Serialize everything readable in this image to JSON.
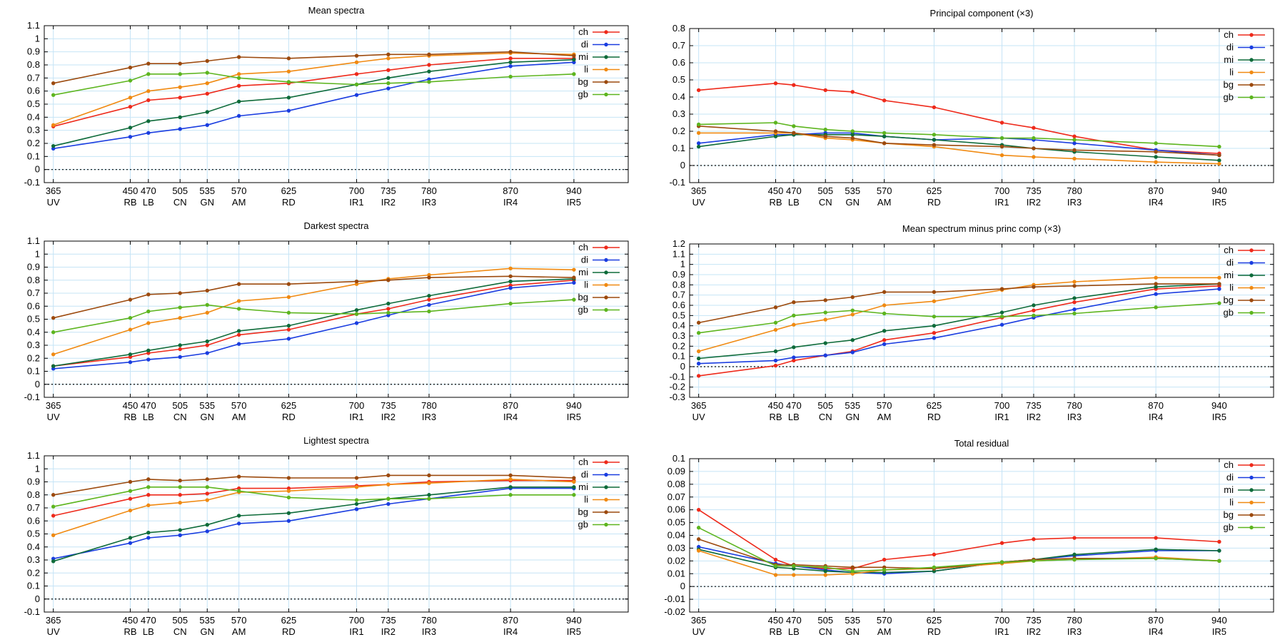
{
  "colors": {
    "ch": "#ee2a1b",
    "di": "#1a3de0",
    "mi": "#0e6b3a",
    "li": "#f08a12",
    "bg": "#9c4a0e",
    "gb": "#5db51f",
    "grid": "#c6e4f6",
    "zero_line": "#000000"
  },
  "x_ticks": [
    {
      "x": 365,
      "num": "365",
      "band": "UV"
    },
    {
      "x": 450,
      "num": "450",
      "band": "RB"
    },
    {
      "x": 470,
      "num": "470",
      "band": "LB"
    },
    {
      "x": 505,
      "num": "505",
      "band": "CN"
    },
    {
      "x": 535,
      "num": "535",
      "band": "GN"
    },
    {
      "x": 570,
      "num": "570",
      "band": "AM"
    },
    {
      "x": 625,
      "num": "625",
      "band": "RD"
    },
    {
      "x": 700,
      "num": "700",
      "band": "IR1"
    },
    {
      "x": 735,
      "num": "735",
      "band": "IR2"
    },
    {
      "x": 780,
      "num": "780",
      "band": "IR3"
    },
    {
      "x": 870,
      "num": "870",
      "band": "IR4"
    },
    {
      "x": 940,
      "num": "940",
      "band": "IR5"
    }
  ],
  "chart_data": [
    {
      "type": "line",
      "title": "Mean spectra",
      "xlim": [
        355,
        1000
      ],
      "ylim": [
        -0.1,
        1.1
      ],
      "ystep": 0.1,
      "legend_position": "top-right",
      "grid": true,
      "x": [
        365,
        450,
        470,
        505,
        535,
        570,
        625,
        700,
        735,
        780,
        870,
        940
      ],
      "series": [
        {
          "name": "ch",
          "values": [
            0.33,
            0.48,
            0.53,
            0.55,
            0.58,
            0.64,
            0.66,
            0.73,
            0.76,
            0.8,
            0.85,
            0.85
          ]
        },
        {
          "name": "di",
          "values": [
            0.16,
            0.25,
            0.28,
            0.31,
            0.34,
            0.41,
            0.45,
            0.57,
            0.62,
            0.69,
            0.79,
            0.82
          ]
        },
        {
          "name": "mi",
          "values": [
            0.18,
            0.32,
            0.37,
            0.4,
            0.44,
            0.52,
            0.55,
            0.65,
            0.7,
            0.75,
            0.82,
            0.84
          ]
        },
        {
          "name": "li",
          "values": [
            0.34,
            0.55,
            0.6,
            0.63,
            0.66,
            0.73,
            0.75,
            0.82,
            0.85,
            0.87,
            0.89,
            0.88
          ]
        },
        {
          "name": "bg",
          "values": [
            0.66,
            0.78,
            0.81,
            0.81,
            0.83,
            0.86,
            0.85,
            0.87,
            0.88,
            0.88,
            0.9,
            0.87
          ]
        },
        {
          "name": "gb",
          "values": [
            0.57,
            0.68,
            0.73,
            0.73,
            0.74,
            0.7,
            0.67,
            0.65,
            0.66,
            0.67,
            0.71,
            0.73
          ]
        }
      ]
    },
    {
      "type": "line",
      "title": "Principal component (×3)",
      "xlim": [
        355,
        1000
      ],
      "ylim": [
        -0.1,
        0.8
      ],
      "ystep": 0.1,
      "legend_position": "top-right",
      "grid": true,
      "x": [
        365,
        450,
        470,
        505,
        535,
        570,
        625,
        700,
        735,
        780,
        870,
        940
      ],
      "series": [
        {
          "name": "ch",
          "values": [
            0.44,
            0.48,
            0.47,
            0.44,
            0.43,
            0.38,
            0.34,
            0.25,
            0.22,
            0.17,
            0.09,
            0.07
          ]
        },
        {
          "name": "di",
          "values": [
            0.13,
            0.18,
            0.18,
            0.19,
            0.19,
            0.17,
            0.15,
            0.16,
            0.15,
            0.13,
            0.09,
            0.06
          ]
        },
        {
          "name": "mi",
          "values": [
            0.11,
            0.17,
            0.18,
            0.18,
            0.18,
            0.17,
            0.15,
            0.12,
            0.1,
            0.08,
            0.05,
            0.03
          ]
        },
        {
          "name": "li",
          "values": [
            0.19,
            0.19,
            0.19,
            0.16,
            0.15,
            0.13,
            0.11,
            0.06,
            0.05,
            0.04,
            0.02,
            0.01
          ]
        },
        {
          "name": "bg",
          "values": [
            0.23,
            0.2,
            0.19,
            0.17,
            0.16,
            0.13,
            0.12,
            0.11,
            0.1,
            0.09,
            0.08,
            0.06
          ]
        },
        {
          "name": "gb",
          "values": [
            0.24,
            0.25,
            0.23,
            0.21,
            0.2,
            0.19,
            0.18,
            0.16,
            0.16,
            0.15,
            0.13,
            0.11
          ]
        }
      ]
    },
    {
      "type": "line",
      "title": "Darkest spectra",
      "xlim": [
        355,
        1000
      ],
      "ylim": [
        -0.1,
        1.1
      ],
      "ystep": 0.1,
      "legend_position": "top-right",
      "grid": true,
      "x": [
        365,
        450,
        470,
        505,
        535,
        570,
        625,
        700,
        735,
        780,
        870,
        940
      ],
      "series": [
        {
          "name": "ch",
          "values": [
            0.14,
            0.21,
            0.24,
            0.27,
            0.3,
            0.38,
            0.42,
            0.54,
            0.58,
            0.65,
            0.76,
            0.8
          ]
        },
        {
          "name": "di",
          "values": [
            0.12,
            0.17,
            0.19,
            0.21,
            0.24,
            0.31,
            0.35,
            0.47,
            0.53,
            0.61,
            0.74,
            0.78
          ]
        },
        {
          "name": "mi",
          "values": [
            0.14,
            0.23,
            0.26,
            0.3,
            0.33,
            0.41,
            0.45,
            0.57,
            0.62,
            0.68,
            0.79,
            0.81
          ]
        },
        {
          "name": "li",
          "values": [
            0.23,
            0.42,
            0.47,
            0.51,
            0.55,
            0.64,
            0.67,
            0.77,
            0.81,
            0.84,
            0.89,
            0.88
          ]
        },
        {
          "name": "bg",
          "values": [
            0.51,
            0.65,
            0.69,
            0.7,
            0.72,
            0.77,
            0.77,
            0.79,
            0.8,
            0.82,
            0.83,
            0.82
          ]
        },
        {
          "name": "gb",
          "values": [
            0.4,
            0.51,
            0.56,
            0.59,
            0.61,
            0.58,
            0.55,
            0.54,
            0.55,
            0.56,
            0.62,
            0.65
          ]
        }
      ]
    },
    {
      "type": "line",
      "title": "Mean spectrum minus princ comp (×3)",
      "xlim": [
        355,
        1000
      ],
      "ylim": [
        -0.3,
        1.2
      ],
      "ystep": 0.1,
      "legend_position": "top-right",
      "grid": true,
      "x": [
        365,
        450,
        470,
        505,
        535,
        570,
        625,
        700,
        735,
        780,
        870,
        940
      ],
      "series": [
        {
          "name": "ch",
          "values": [
            -0.09,
            0.01,
            0.06,
            0.11,
            0.15,
            0.26,
            0.33,
            0.48,
            0.55,
            0.63,
            0.76,
            0.79
          ]
        },
        {
          "name": "di",
          "values": [
            0.03,
            0.06,
            0.09,
            0.11,
            0.14,
            0.22,
            0.28,
            0.41,
            0.48,
            0.56,
            0.71,
            0.76
          ]
        },
        {
          "name": "mi",
          "values": [
            0.08,
            0.15,
            0.19,
            0.23,
            0.26,
            0.35,
            0.4,
            0.53,
            0.6,
            0.67,
            0.78,
            0.81
          ]
        },
        {
          "name": "li",
          "values": [
            0.15,
            0.36,
            0.41,
            0.46,
            0.51,
            0.6,
            0.64,
            0.75,
            0.8,
            0.83,
            0.87,
            0.87
          ]
        },
        {
          "name": "bg",
          "values": [
            0.43,
            0.58,
            0.63,
            0.65,
            0.68,
            0.73,
            0.73,
            0.76,
            0.78,
            0.79,
            0.81,
            0.81
          ]
        },
        {
          "name": "gb",
          "values": [
            0.33,
            0.43,
            0.5,
            0.53,
            0.55,
            0.52,
            0.49,
            0.49,
            0.5,
            0.52,
            0.58,
            0.62
          ]
        }
      ]
    },
    {
      "type": "line",
      "title": "Lightest spectra",
      "xlim": [
        355,
        1000
      ],
      "ylim": [
        -0.1,
        1.1
      ],
      "ystep": 0.1,
      "legend_position": "top-right",
      "grid": true,
      "x": [
        365,
        450,
        470,
        505,
        535,
        570,
        625,
        700,
        735,
        780,
        870,
        940
      ],
      "series": [
        {
          "name": "ch",
          "values": [
            0.64,
            0.77,
            0.8,
            0.8,
            0.81,
            0.85,
            0.85,
            0.87,
            0.88,
            0.9,
            0.91,
            0.91
          ]
        },
        {
          "name": "di",
          "values": [
            0.31,
            0.43,
            0.47,
            0.49,
            0.52,
            0.58,
            0.6,
            0.69,
            0.73,
            0.77,
            0.85,
            0.85
          ]
        },
        {
          "name": "mi",
          "values": [
            0.29,
            0.47,
            0.51,
            0.53,
            0.57,
            0.64,
            0.66,
            0.73,
            0.77,
            0.8,
            0.86,
            0.86
          ]
        },
        {
          "name": "li",
          "values": [
            0.49,
            0.68,
            0.72,
            0.74,
            0.76,
            0.82,
            0.83,
            0.86,
            0.88,
            0.89,
            0.92,
            0.9
          ]
        },
        {
          "name": "bg",
          "values": [
            0.8,
            0.9,
            0.92,
            0.91,
            0.92,
            0.94,
            0.93,
            0.93,
            0.95,
            0.95,
            0.95,
            0.93
          ]
        },
        {
          "name": "gb",
          "values": [
            0.71,
            0.83,
            0.86,
            0.86,
            0.86,
            0.83,
            0.78,
            0.76,
            0.77,
            0.77,
            0.8,
            0.8
          ]
        }
      ]
    },
    {
      "type": "line",
      "title": "Total residual",
      "xlim": [
        355,
        1000
      ],
      "ylim": [
        -0.02,
        0.1
      ],
      "ystep": 0.01,
      "legend_position": "top-right",
      "grid": true,
      "x": [
        365,
        450,
        470,
        505,
        535,
        570,
        625,
        700,
        735,
        780,
        870,
        940
      ],
      "series": [
        {
          "name": "ch",
          "values": [
            0.06,
            0.021,
            0.016,
            0.014,
            0.014,
            0.021,
            0.025,
            0.034,
            0.037,
            0.038,
            0.038,
            0.035
          ]
        },
        {
          "name": "di",
          "values": [
            0.031,
            0.018,
            0.016,
            0.013,
            0.011,
            0.01,
            0.012,
            0.019,
            0.021,
            0.024,
            0.028,
            0.028
          ]
        },
        {
          "name": "mi",
          "values": [
            0.029,
            0.015,
            0.014,
            0.012,
            0.011,
            0.011,
            0.012,
            0.019,
            0.021,
            0.025,
            0.029,
            0.028
          ]
        },
        {
          "name": "li",
          "values": [
            0.028,
            0.009,
            0.009,
            0.009,
            0.01,
            0.013,
            0.014,
            0.018,
            0.02,
            0.021,
            0.023,
            0.02
          ]
        },
        {
          "name": "bg",
          "values": [
            0.037,
            0.017,
            0.017,
            0.016,
            0.015,
            0.015,
            0.014,
            0.019,
            0.021,
            0.022,
            0.022,
            0.02
          ]
        },
        {
          "name": "gb",
          "values": [
            0.046,
            0.016,
            0.016,
            0.015,
            0.012,
            0.013,
            0.015,
            0.019,
            0.02,
            0.021,
            0.022,
            0.02
          ]
        }
      ]
    }
  ]
}
